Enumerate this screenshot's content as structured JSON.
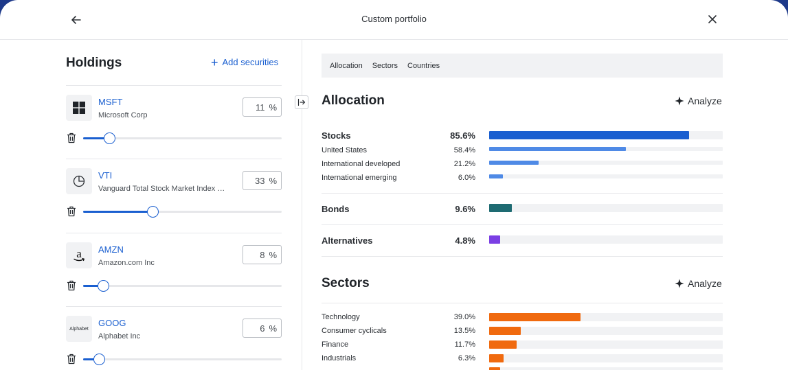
{
  "header": {
    "title": "Custom portfolio"
  },
  "holdings": {
    "title": "Holdings",
    "add_label": "Add securities",
    "items": [
      {
        "ticker": "MSFT",
        "name": "Microsoft Corp",
        "percent": "11",
        "unit": "%",
        "logo": "microsoft-logo",
        "slider_fraction": 0.13
      },
      {
        "ticker": "VTI",
        "name": "Vanguard Total Stock Market Index Fund",
        "percent": "33",
        "unit": "%",
        "logo": "pie-chart-icon",
        "slider_fraction": 0.35
      },
      {
        "ticker": "AMZN",
        "name": "Amazon.com Inc",
        "percent": "8",
        "unit": "%",
        "logo": "amazon-logo",
        "slider_fraction": 0.1
      },
      {
        "ticker": "GOOG",
        "name": "Alphabet Inc",
        "percent": "6",
        "unit": "%",
        "logo": "alphabet-logo",
        "logo_text": "Alphabet",
        "slider_fraction": 0.08
      }
    ]
  },
  "tabs": [
    "Allocation",
    "Sectors",
    "Countries"
  ],
  "allocation": {
    "title": "Allocation",
    "analyze_label": "Analyze",
    "groups": [
      {
        "label": "Stocks",
        "value": "85.6%",
        "fraction": 0.856,
        "color": "#1a5fd0",
        "children": [
          {
            "label": "United States",
            "value": "58.4%",
            "fraction": 0.584,
            "color": "#4f8ae6"
          },
          {
            "label": "International developed",
            "value": "21.2%",
            "fraction": 0.212,
            "color": "#4f8ae6"
          },
          {
            "label": "International emerging",
            "value": "6.0%",
            "fraction": 0.06,
            "color": "#4f8ae6"
          }
        ]
      },
      {
        "label": "Bonds",
        "value": "9.6%",
        "fraction": 0.096,
        "color": "#1e6b72",
        "children": []
      },
      {
        "label": "Alternatives",
        "value": "4.8%",
        "fraction": 0.048,
        "color": "#7b3fe4",
        "children": []
      }
    ]
  },
  "sectors": {
    "title": "Sectors",
    "analyze_label": "Analyze",
    "color": "#f06a0f",
    "items": [
      {
        "label": "Technology",
        "value": "39.0%",
        "fraction": 0.39
      },
      {
        "label": "Consumer cyclicals",
        "value": "13.5%",
        "fraction": 0.135
      },
      {
        "label": "Finance",
        "value": "11.7%",
        "fraction": 0.117
      },
      {
        "label": "Industrials",
        "value": "6.3%",
        "fraction": 0.063
      }
    ]
  }
}
